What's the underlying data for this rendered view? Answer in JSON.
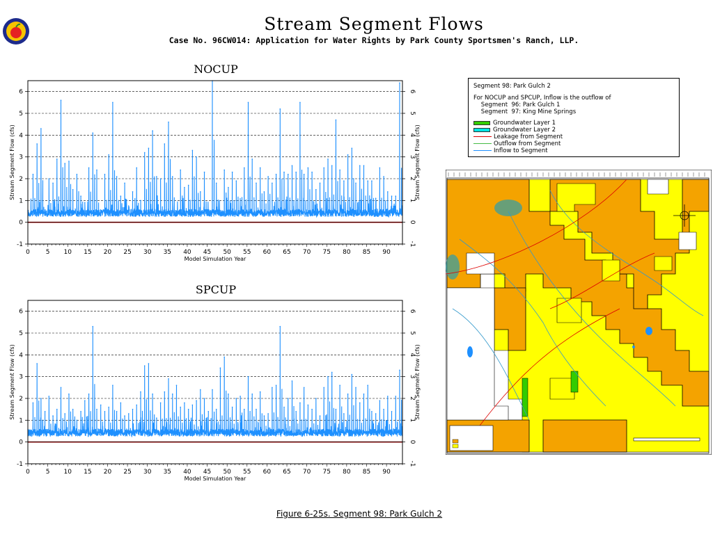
{
  "header": {
    "title": "Stream Segment Flows",
    "subtitle": "Case No. 96CW014: Application for Water Rights by Park County Sportsmen's Ranch, LLP."
  },
  "caption": "Figure 6-25s.  Segment 98: Park Gulch 2",
  "legend": {
    "segment_title": "Segment 98: Park Gulch 2",
    "note_line1": "For NOCUP and SPCUP, Inflow is the outflow of",
    "note_line2": "    Segment  96: Park Gulch 1",
    "note_line3": "    Segment  97: King Mine Springs",
    "items": [
      {
        "label": "Groundwater Layer 1",
        "color": "#33cc00",
        "kind": "swatch"
      },
      {
        "label": "Groundwater Layer 2",
        "color": "#00e5e5",
        "kind": "swatch"
      },
      {
        "label": "Leakage from Segment",
        "color": "#dd0000",
        "kind": "line"
      },
      {
        "label": "Outflow from Segment",
        "color": "#44bb44",
        "kind": "line"
      },
      {
        "label": "Inflow to Segment",
        "color": "#1e90ff",
        "kind": "line"
      }
    ]
  },
  "chart_data": [
    {
      "type": "line",
      "title": "NOCUP",
      "xlabel": "Model Simulation Year",
      "ylabel": "Stream Segment Flow (cfs)",
      "ylim": [
        -1,
        6.5
      ],
      "xlim": [
        0,
        94
      ],
      "yticks": [
        -1,
        0,
        1,
        2,
        3,
        4,
        5,
        6
      ],
      "xticks": [
        0,
        5,
        10,
        15,
        20,
        25,
        30,
        35,
        40,
        45,
        50,
        55,
        60,
        65,
        70,
        75,
        80,
        85,
        90
      ],
      "dashed_gridlines_y": [
        1,
        2,
        3,
        4,
        5,
        6
      ],
      "series": [
        {
          "name": "Inflow to Segment",
          "color": "#1e90ff",
          "peaks": [
            [
              1,
              2.2
            ],
            [
              2,
              3.6
            ],
            [
              3,
              4.3
            ],
            [
              5,
              2.0
            ],
            [
              6,
              1.8
            ],
            [
              7,
              2.9
            ],
            [
              8,
              5.6
            ],
            [
              9,
              2.7
            ],
            [
              10,
              2.8
            ],
            [
              11,
              1.5
            ],
            [
              12,
              2.2
            ],
            [
              13,
              1.2
            ],
            [
              14,
              0.9
            ],
            [
              15,
              2.5
            ],
            [
              16,
              4.1
            ],
            [
              17,
              2.4
            ],
            [
              19,
              2.2
            ],
            [
              20,
              3.1
            ],
            [
              21,
              5.5
            ],
            [
              22,
              2.1
            ],
            [
              23,
              1.2
            ],
            [
              24,
              1.8
            ],
            [
              26,
              1.4
            ],
            [
              27,
              2.5
            ],
            [
              28,
              1.0
            ],
            [
              29,
              3.2
            ],
            [
              30,
              3.4
            ],
            [
              31,
              4.2
            ],
            [
              32,
              2.1
            ],
            [
              33,
              2.0
            ],
            [
              34,
              3.6
            ],
            [
              35,
              4.6
            ],
            [
              36,
              2.1
            ],
            [
              38,
              2.4
            ],
            [
              39,
              1.6
            ],
            [
              40,
              1.7
            ],
            [
              41,
              3.3
            ],
            [
              42,
              3.0
            ],
            [
              43,
              1.4
            ],
            [
              44,
              2.3
            ],
            [
              46,
              6.5
            ],
            [
              47,
              1.8
            ],
            [
              49,
              2.4
            ],
            [
              50,
              1.6
            ],
            [
              51,
              2.3
            ],
            [
              52,
              1.9
            ],
            [
              54,
              2.5
            ],
            [
              55,
              5.5
            ],
            [
              56,
              2.9
            ],
            [
              57,
              1.8
            ],
            [
              58,
              2.5
            ],
            [
              59,
              1.4
            ],
            [
              60,
              2.1
            ],
            [
              61,
              1.8
            ],
            [
              62,
              2.2
            ],
            [
              63,
              5.2
            ],
            [
              64,
              2.3
            ],
            [
              65,
              2.2
            ],
            [
              66,
              2.6
            ],
            [
              67,
              2.3
            ],
            [
              68,
              5.5
            ],
            [
              69,
              2.2
            ],
            [
              70,
              2.5
            ],
            [
              71,
              2.3
            ],
            [
              72,
              1.5
            ],
            [
              73,
              1.8
            ],
            [
              74,
              2.5
            ],
            [
              75,
              2.9
            ],
            [
              76,
              2.6
            ],
            [
              77,
              4.7
            ],
            [
              78,
              2.4
            ],
            [
              79,
              1.9
            ],
            [
              80,
              3.1
            ],
            [
              81,
              3.4
            ],
            [
              82,
              1.8
            ],
            [
              83,
              2.6
            ],
            [
              84,
              2.6
            ],
            [
              85,
              1.9
            ],
            [
              86,
              1.9
            ],
            [
              87,
              1.1
            ],
            [
              88,
              2.5
            ],
            [
              89,
              2.1
            ],
            [
              90,
              1.4
            ],
            [
              91,
              1.2
            ],
            [
              92,
              1.2
            ],
            [
              93,
              6.4
            ]
          ]
        },
        {
          "name": "Leakage from Segment",
          "color": "#dd0000",
          "constant": 0.0
        }
      ]
    },
    {
      "type": "line",
      "title": "SPCUP",
      "xlabel": "Model Simulation Year",
      "ylabel": "Stream Segment Flow (cfs)",
      "ylim": [
        -1,
        6.5
      ],
      "xlim": [
        0,
        94
      ],
      "yticks": [
        -1,
        0,
        1,
        2,
        3,
        4,
        5,
        6
      ],
      "xticks": [
        0,
        5,
        10,
        15,
        20,
        25,
        30,
        35,
        40,
        45,
        50,
        55,
        60,
        65,
        70,
        75,
        80,
        85,
        90
      ],
      "dashed_gridlines_y": [
        1,
        2,
        3,
        4,
        5,
        6
      ],
      "series": [
        {
          "name": "Inflow to Segment",
          "color": "#1e90ff",
          "peaks": [
            [
              1,
              1.8
            ],
            [
              2,
              3.6
            ],
            [
              3,
              2.0
            ],
            [
              4,
              1.4
            ],
            [
              5,
              2.1
            ],
            [
              6,
              1.2
            ],
            [
              7,
              1.5
            ],
            [
              8,
              2.5
            ],
            [
              9,
              1.3
            ],
            [
              10,
              2.2
            ],
            [
              11,
              1.5
            ],
            [
              12,
              1.0
            ],
            [
              13,
              1.4
            ],
            [
              14,
              1.9
            ],
            [
              15,
              2.2
            ],
            [
              16,
              5.3
            ],
            [
              17,
              1.5
            ],
            [
              18,
              1.7
            ],
            [
              19,
              1.4
            ],
            [
              20,
              1.6
            ],
            [
              21,
              2.6
            ],
            [
              22,
              1.4
            ],
            [
              23,
              1.8
            ],
            [
              24,
              1.2
            ],
            [
              25,
              1.3
            ],
            [
              26,
              1.5
            ],
            [
              27,
              1.7
            ],
            [
              28,
              2.3
            ],
            [
              29,
              3.5
            ],
            [
              30,
              3.6
            ],
            [
              31,
              2.2
            ],
            [
              32,
              1.1
            ],
            [
              33,
              1.8
            ],
            [
              34,
              2.3
            ],
            [
              35,
              2.9
            ],
            [
              36,
              2.2
            ],
            [
              37,
              2.6
            ],
            [
              38,
              1.6
            ],
            [
              39,
              1.8
            ],
            [
              40,
              1.5
            ],
            [
              41,
              1.7
            ],
            [
              42,
              1.9
            ],
            [
              43,
              2.4
            ],
            [
              44,
              2.0
            ],
            [
              45,
              1.4
            ],
            [
              46,
              2.4
            ],
            [
              47,
              1.5
            ],
            [
              48,
              3.4
            ],
            [
              49,
              3.9
            ],
            [
              50,
              2.2
            ],
            [
              51,
              1.6
            ],
            [
              52,
              2.0
            ],
            [
              53,
              2.1
            ],
            [
              54,
              1.5
            ],
            [
              55,
              3.0
            ],
            [
              56,
              2.2
            ],
            [
              57,
              1.5
            ],
            [
              58,
              2.3
            ],
            [
              59,
              1.2
            ],
            [
              60,
              1.3
            ],
            [
              61,
              2.5
            ],
            [
              62,
              2.6
            ],
            [
              63,
              5.3
            ],
            [
              64,
              1.6
            ],
            [
              65,
              2.0
            ],
            [
              66,
              2.8
            ],
            [
              67,
              1.4
            ],
            [
              68,
              1.8
            ],
            [
              69,
              2.5
            ],
            [
              70,
              1.7
            ],
            [
              71,
              1.5
            ],
            [
              72,
              2.0
            ],
            [
              73,
              1.2
            ],
            [
              74,
              2.5
            ],
            [
              75,
              3.0
            ],
            [
              76,
              3.2
            ],
            [
              77,
              1.5
            ],
            [
              78,
              2.6
            ],
            [
              79,
              1.3
            ],
            [
              80,
              2.2
            ],
            [
              81,
              3.1
            ],
            [
              82,
              2.5
            ],
            [
              83,
              1.8
            ],
            [
              84,
              2.2
            ],
            [
              85,
              2.6
            ],
            [
              86,
              1.4
            ],
            [
              87,
              1.3
            ],
            [
              88,
              1.9
            ],
            [
              89,
              1.5
            ],
            [
              90,
              2.1
            ],
            [
              91,
              1.4
            ],
            [
              92,
              2.1
            ],
            [
              93,
              3.3
            ]
          ]
        },
        {
          "name": "Leakage from Segment",
          "color": "#dd0000",
          "constant": 0.0
        }
      ]
    }
  ]
}
